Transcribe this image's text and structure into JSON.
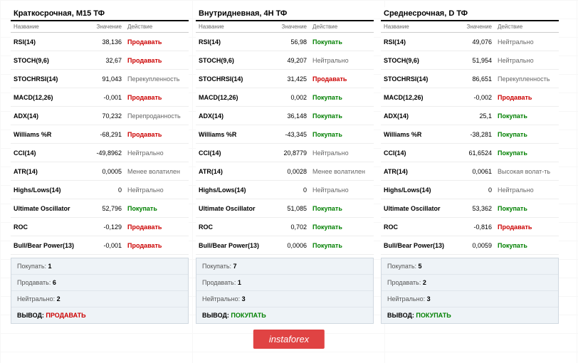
{
  "labels": {
    "col_name": "Название",
    "col_value": "Значение",
    "col_action": "Действие",
    "buy_label": "Покупать:",
    "sell_label": "Продавать:",
    "neutral_label": "Нейтрально:",
    "verdict_label": "ВЫВОД:"
  },
  "watermark": "instaforex",
  "action_text": {
    "buy": "Покупать",
    "sell": "Продавать",
    "neutral": "Нейтрально",
    "overbought": "Перекупленность",
    "oversold": "Перепроданность",
    "less_volatile": "Менее волатилен",
    "high_volatile": "Высокая волат-ть"
  },
  "colors": {
    "buy": "#008000",
    "sell": "#cc0000",
    "neutral": "#666666",
    "summary_bg": "#eef3f7",
    "watermark_bg": "#e04343"
  },
  "panels": [
    {
      "title": "Краткосрочная, М15 ТФ",
      "rows": [
        {
          "name": "RSI(14)",
          "value": "38,136",
          "action": "sell"
        },
        {
          "name": "STOCH(9,6)",
          "value": "32,67",
          "action": "sell"
        },
        {
          "name": "STOCHRSI(14)",
          "value": "91,043",
          "action": "overbought"
        },
        {
          "name": "MACD(12,26)",
          "value": "-0,001",
          "action": "sell"
        },
        {
          "name": "ADX(14)",
          "value": "70,232",
          "action": "oversold"
        },
        {
          "name": "Williams %R",
          "value": "-68,291",
          "action": "sell"
        },
        {
          "name": "CCI(14)",
          "value": "-49,8962",
          "action": "neutral"
        },
        {
          "name": "ATR(14)",
          "value": "0,0005",
          "action": "less_volatile"
        },
        {
          "name": "Highs/Lows(14)",
          "value": "0",
          "action": "neutral"
        },
        {
          "name": "Ultimate Oscillator",
          "value": "52,796",
          "action": "buy"
        },
        {
          "name": "ROC",
          "value": "-0,129",
          "action": "sell"
        },
        {
          "name": "Bull/Bear Power(13)",
          "value": "-0,001",
          "action": "sell"
        }
      ],
      "summary": {
        "buy": "1",
        "sell": "6",
        "neutral": "2",
        "verdict": "ПРОДАВАТЬ",
        "verdict_class": "sell"
      }
    },
    {
      "title": "Внутридневная, 4Н ТФ",
      "rows": [
        {
          "name": "RSI(14)",
          "value": "56,98",
          "action": "buy"
        },
        {
          "name": "STOCH(9,6)",
          "value": "49,207",
          "action": "neutral"
        },
        {
          "name": "STOCHRSI(14)",
          "value": "31,425",
          "action": "sell"
        },
        {
          "name": "MACD(12,26)",
          "value": "0,002",
          "action": "buy"
        },
        {
          "name": "ADX(14)",
          "value": "36,148",
          "action": "buy"
        },
        {
          "name": "Williams %R",
          "value": "-43,345",
          "action": "buy"
        },
        {
          "name": "CCI(14)",
          "value": "20,8779",
          "action": "neutral"
        },
        {
          "name": "ATR(14)",
          "value": "0,0028",
          "action": "less_volatile"
        },
        {
          "name": "Highs/Lows(14)",
          "value": "0",
          "action": "neutral"
        },
        {
          "name": "Ultimate Oscillator",
          "value": "51,085",
          "action": "buy"
        },
        {
          "name": "ROC",
          "value": "0,702",
          "action": "buy"
        },
        {
          "name": "Bull/Bear Power(13)",
          "value": "0,0006",
          "action": "buy"
        }
      ],
      "summary": {
        "buy": "7",
        "sell": "1",
        "neutral": "3",
        "verdict": "ПОКУПАТЬ",
        "verdict_class": "buy"
      }
    },
    {
      "title": "Среднесрочная, D ТФ",
      "rows": [
        {
          "name": "RSI(14)",
          "value": "49,076",
          "action": "neutral"
        },
        {
          "name": "STOCH(9,6)",
          "value": "51,954",
          "action": "neutral"
        },
        {
          "name": "STOCHRSI(14)",
          "value": "86,651",
          "action": "overbought"
        },
        {
          "name": "MACD(12,26)",
          "value": "-0,002",
          "action": "sell"
        },
        {
          "name": "ADX(14)",
          "value": "25,1",
          "action": "buy"
        },
        {
          "name": "Williams %R",
          "value": "-38,281",
          "action": "buy"
        },
        {
          "name": "CCI(14)",
          "value": "61,6524",
          "action": "buy"
        },
        {
          "name": "ATR(14)",
          "value": "0,0061",
          "action": "high_volatile"
        },
        {
          "name": "Highs/Lows(14)",
          "value": "0",
          "action": "neutral"
        },
        {
          "name": "Ultimate Oscillator",
          "value": "53,362",
          "action": "buy"
        },
        {
          "name": "ROC",
          "value": "-0,816",
          "action": "sell"
        },
        {
          "name": "Bull/Bear Power(13)",
          "value": "0,0059",
          "action": "buy"
        }
      ],
      "summary": {
        "buy": "5",
        "sell": "2",
        "neutral": "3",
        "verdict": "ПОКУПАТЬ",
        "verdict_class": "buy"
      }
    }
  ]
}
